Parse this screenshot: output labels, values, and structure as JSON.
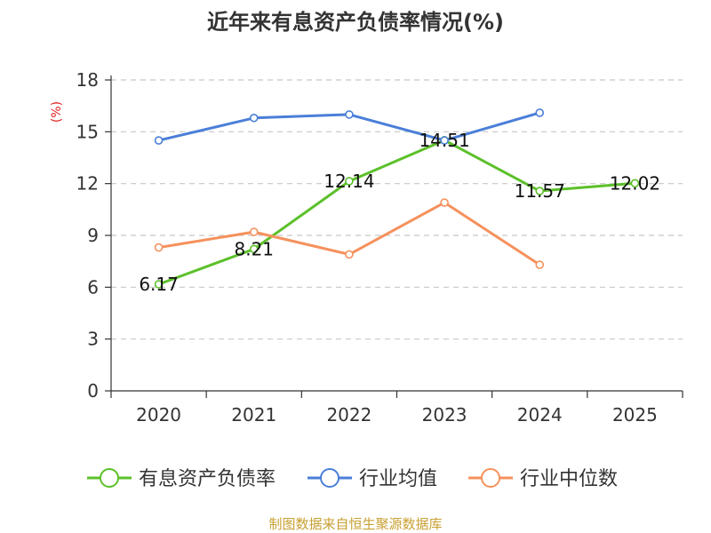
{
  "chart_data": {
    "type": "line",
    "title": "近年来有息资产负债率情况(%)",
    "ylabel": "(%)",
    "categories": [
      "2020",
      "2021",
      "2022",
      "2023",
      "2024",
      "2025"
    ],
    "yticks": [
      "0",
      "3",
      "6",
      "9",
      "12",
      "15",
      "18"
    ],
    "ylim": [
      0,
      18
    ],
    "grid": true,
    "legend_position": "bottom",
    "series": [
      {
        "name": "有息资产负债率",
        "color": "#5cc02a",
        "values": [
          6.17,
          8.21,
          12.14,
          14.51,
          11.57,
          12.02
        ],
        "data_labels": [
          "6.17",
          "8.21",
          "12.14",
          "14.51",
          "11.57",
          "12.02"
        ]
      },
      {
        "name": "行业均值",
        "color": "#4a7fd8",
        "values": [
          14.5,
          15.8,
          16.0,
          14.5,
          16.1,
          null
        ]
      },
      {
        "name": "行业中位数",
        "color": "#f5915c",
        "values": [
          8.3,
          9.2,
          7.9,
          10.9,
          7.3,
          null
        ]
      }
    ],
    "source": "制图数据来自恒生聚源数据库",
    "source_color": "#c8a032",
    "ylabel_color": "#e02020"
  }
}
